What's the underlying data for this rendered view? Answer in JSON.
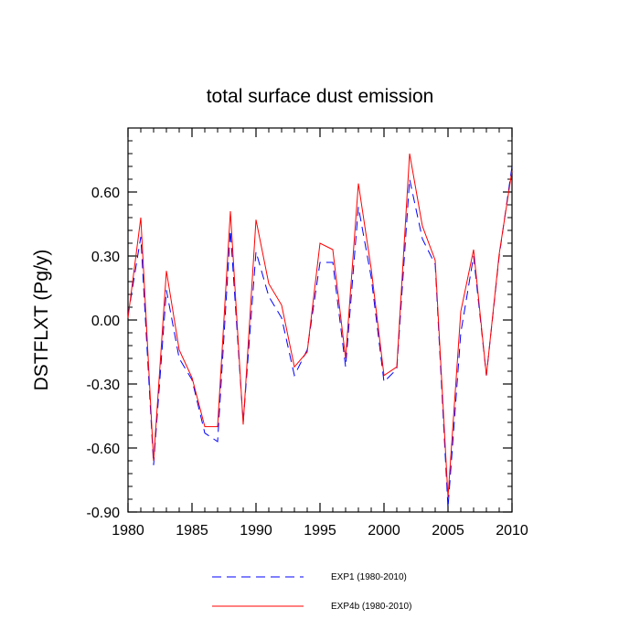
{
  "chart_data": {
    "type": "line",
    "title": "total surface dust emission",
    "xlabel": "",
    "ylabel": "DSTFLXT  (Pg/y)",
    "xlim": [
      1980,
      2010
    ],
    "ylim": [
      -0.9,
      0.9
    ],
    "x_ticks": [
      1980,
      1985,
      1990,
      1995,
      2000,
      2005,
      2010
    ],
    "x_tick_labels": [
      "1980",
      "1985",
      "1990",
      "1995",
      "2000",
      "2005",
      "2010"
    ],
    "y_ticks": [
      -0.9,
      -0.6,
      -0.3,
      0.0,
      0.3,
      0.6
    ],
    "y_tick_labels": [
      "-0.90",
      "-0.60",
      "-0.30",
      "0.00",
      "0.30",
      "0.60"
    ],
    "grid": false,
    "legend_position": "bottom",
    "x": [
      1980,
      1981,
      1982,
      1983,
      1984,
      1985,
      1986,
      1987,
      1988,
      1989,
      1990,
      1991,
      1992,
      1993,
      1994,
      1995,
      1996,
      1997,
      1998,
      1999,
      2000,
      2001,
      2002,
      2003,
      2004,
      2005,
      2006,
      2007,
      2008,
      2009,
      2010
    ],
    "series": [
      {
        "name": "EXP1 (1980-2010)",
        "color": "#0000ff",
        "dash": "dashed",
        "values": [
          0.02,
          0.39,
          -0.68,
          0.14,
          -0.18,
          -0.28,
          -0.53,
          -0.57,
          0.42,
          -0.48,
          0.32,
          0.11,
          0.01,
          -0.26,
          -0.14,
          0.27,
          0.27,
          -0.22,
          0.53,
          0.2,
          -0.29,
          -0.23,
          0.66,
          0.38,
          0.26,
          -0.88,
          -0.06,
          0.3,
          -0.26,
          0.3,
          0.72
        ]
      },
      {
        "name": "EXP4b (1980-2010)",
        "color": "#ff0000",
        "dash": "solid",
        "values": [
          0.01,
          0.48,
          -0.66,
          0.23,
          -0.14,
          -0.27,
          -0.5,
          -0.5,
          0.51,
          -0.49,
          0.47,
          0.17,
          0.07,
          -0.22,
          -0.15,
          0.36,
          0.33,
          -0.18,
          0.64,
          0.24,
          -0.26,
          -0.22,
          0.78,
          0.44,
          0.28,
          -0.83,
          0.04,
          0.33,
          -0.26,
          0.31,
          0.7
        ]
      }
    ]
  }
}
